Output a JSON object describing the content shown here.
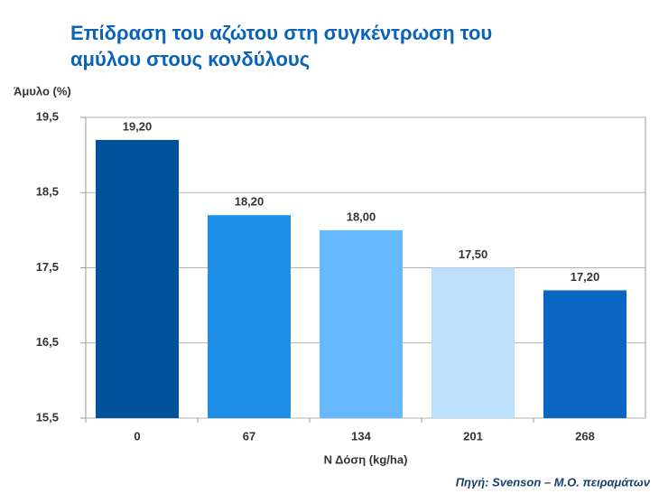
{
  "chart_data": {
    "type": "bar",
    "title": "Επίδραση του αζώτου στη συγκέντρωση του αμύλου στους κονδύλους",
    "y_label": "Άμυλο (%)",
    "x_label": "Ν Δόση (kg/ha)",
    "source": "Πηγή: Svenson – Μ.Ο. πειραμάτων",
    "categories": [
      "0",
      "67",
      "134",
      "201",
      "268"
    ],
    "values": [
      19.2,
      18.2,
      18.0,
      17.5,
      17.2
    ],
    "value_labels": [
      "19,20",
      "18,20",
      "18,00",
      "17,50",
      "17,20"
    ],
    "colors": [
      "#00529b",
      "#1e8ee6",
      "#66b8ff",
      "#bde0fc",
      "#0a66c2"
    ],
    "ylim": [
      15.5,
      19.5
    ],
    "yticks": [
      {
        "value": 15.5,
        "label": "15,5"
      },
      {
        "value": 16.5,
        "label": "16,5"
      },
      {
        "value": 17.5,
        "label": "17,5"
      },
      {
        "value": 18.5,
        "label": "18,5"
      },
      {
        "value": 19.5,
        "label": "19,5"
      }
    ],
    "grid": true
  }
}
